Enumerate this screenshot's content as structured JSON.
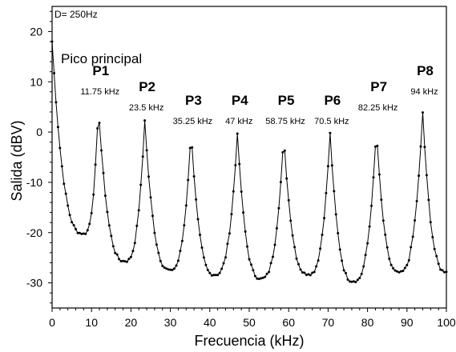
{
  "chart_data": {
    "type": "line",
    "title": "",
    "xlabel": "Frecuencia (kHz)",
    "ylabel": "Salida (dBV)",
    "xlim": [
      0,
      100
    ],
    "ylim": [
      -35,
      25
    ],
    "xticks": [
      0,
      10,
      20,
      30,
      40,
      50,
      60,
      70,
      80,
      90,
      100
    ],
    "yticks": [
      -30,
      -20,
      -10,
      0,
      10,
      20
    ],
    "grid": false,
    "corner_note": "D= 250Hz",
    "main_peak_label": "Pico principal",
    "peaks": [
      {
        "name": "P1",
        "freq_label": "11.75 kHz",
        "x": 11.75,
        "y": 5
      },
      {
        "name": "P2",
        "freq_label": "23.5 kHz",
        "x": 23.5,
        "y": 2.3
      },
      {
        "name": "P3",
        "freq_label": "35.25 kHz",
        "x": 35.25,
        "y": 0.3
      },
      {
        "name": "P4",
        "freq_label": "47 kHz",
        "x": 47,
        "y": -0.3
      },
      {
        "name": "P5",
        "freq_label": "58.75 kHz",
        "x": 58.75,
        "y": -0.8
      },
      {
        "name": "P6",
        "freq_label": "70.5 kHz",
        "x": 70.5,
        "y": -0.2
      },
      {
        "name": "P7",
        "freq_label": "82.25 kHz",
        "x": 82.25,
        "y": 0.6
      },
      {
        "name": "P8",
        "freq_label": "94 kHz",
        "x": 94,
        "y": 3.9
      }
    ],
    "valleys": [
      {
        "x": 8,
        "y": -20.2
      },
      {
        "x": 18.5,
        "y": -25.7
      },
      {
        "x": 30,
        "y": -27.4
      },
      {
        "x": 41.2,
        "y": -28.4
      },
      {
        "x": 53,
        "y": -29.1
      },
      {
        "x": 65,
        "y": -28.3
      },
      {
        "x": 76.5,
        "y": -29.7
      },
      {
        "x": 88,
        "y": -27.9
      }
    ],
    "start_point": {
      "x": 0,
      "y": 18
    },
    "end_point": {
      "x": 100,
      "y": -27.8
    }
  }
}
